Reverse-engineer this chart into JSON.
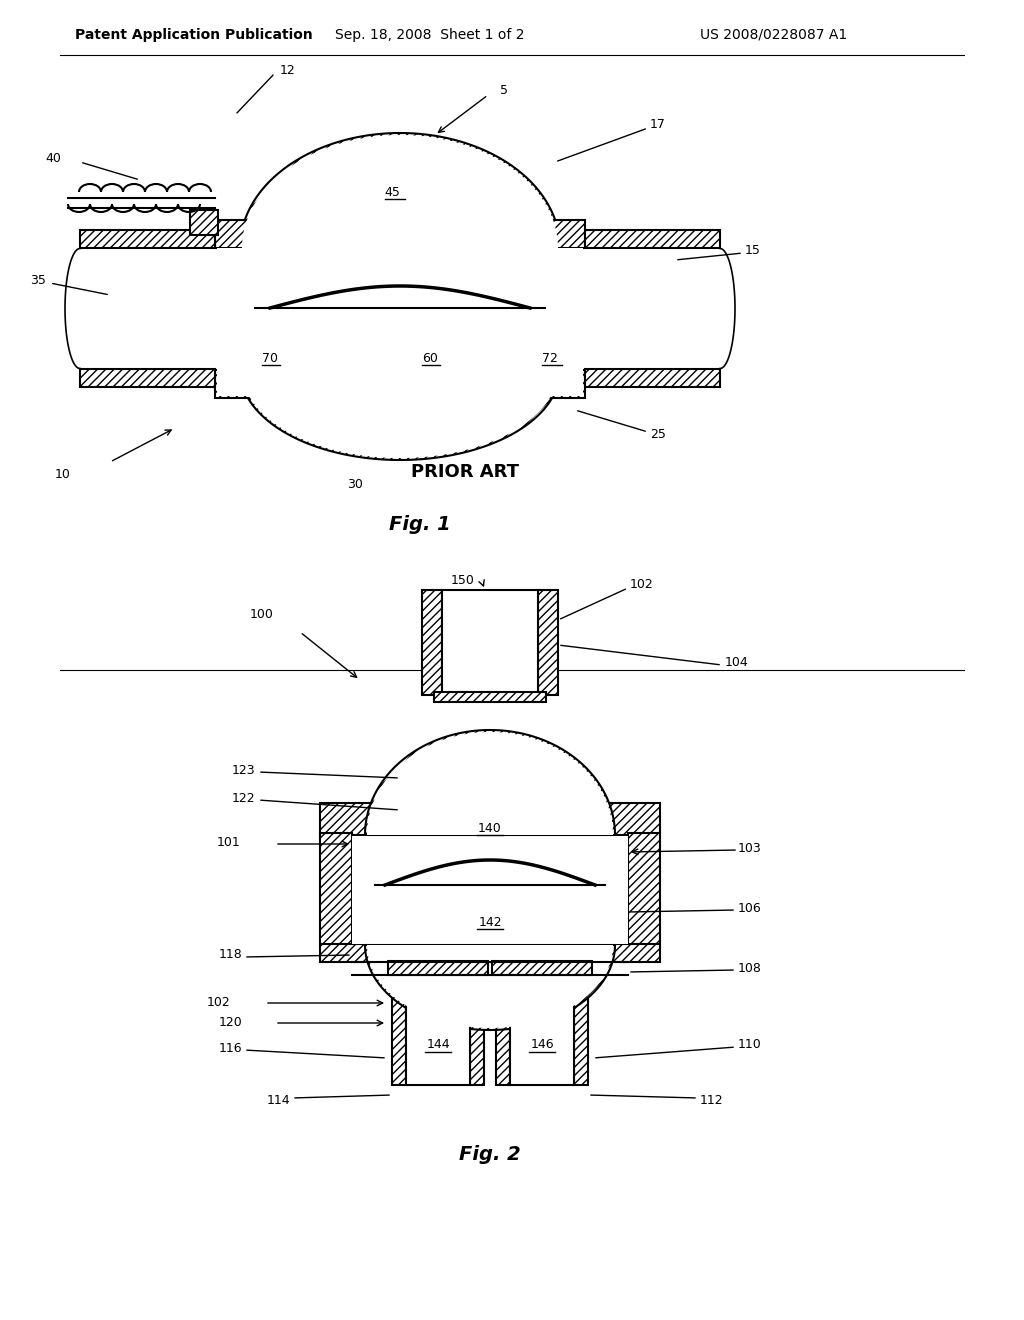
{
  "background_color": "#ffffff",
  "header_text": "Patent Application Publication",
  "header_date": "Sep. 18, 2008  Sheet 1 of 2",
  "header_patent": "US 2008/0228087 A1",
  "fig1_label": "Fig. 1",
  "fig2_label": "Fig. 2",
  "prior_art_label": "PRIOR ART",
  "line_color": "#000000"
}
